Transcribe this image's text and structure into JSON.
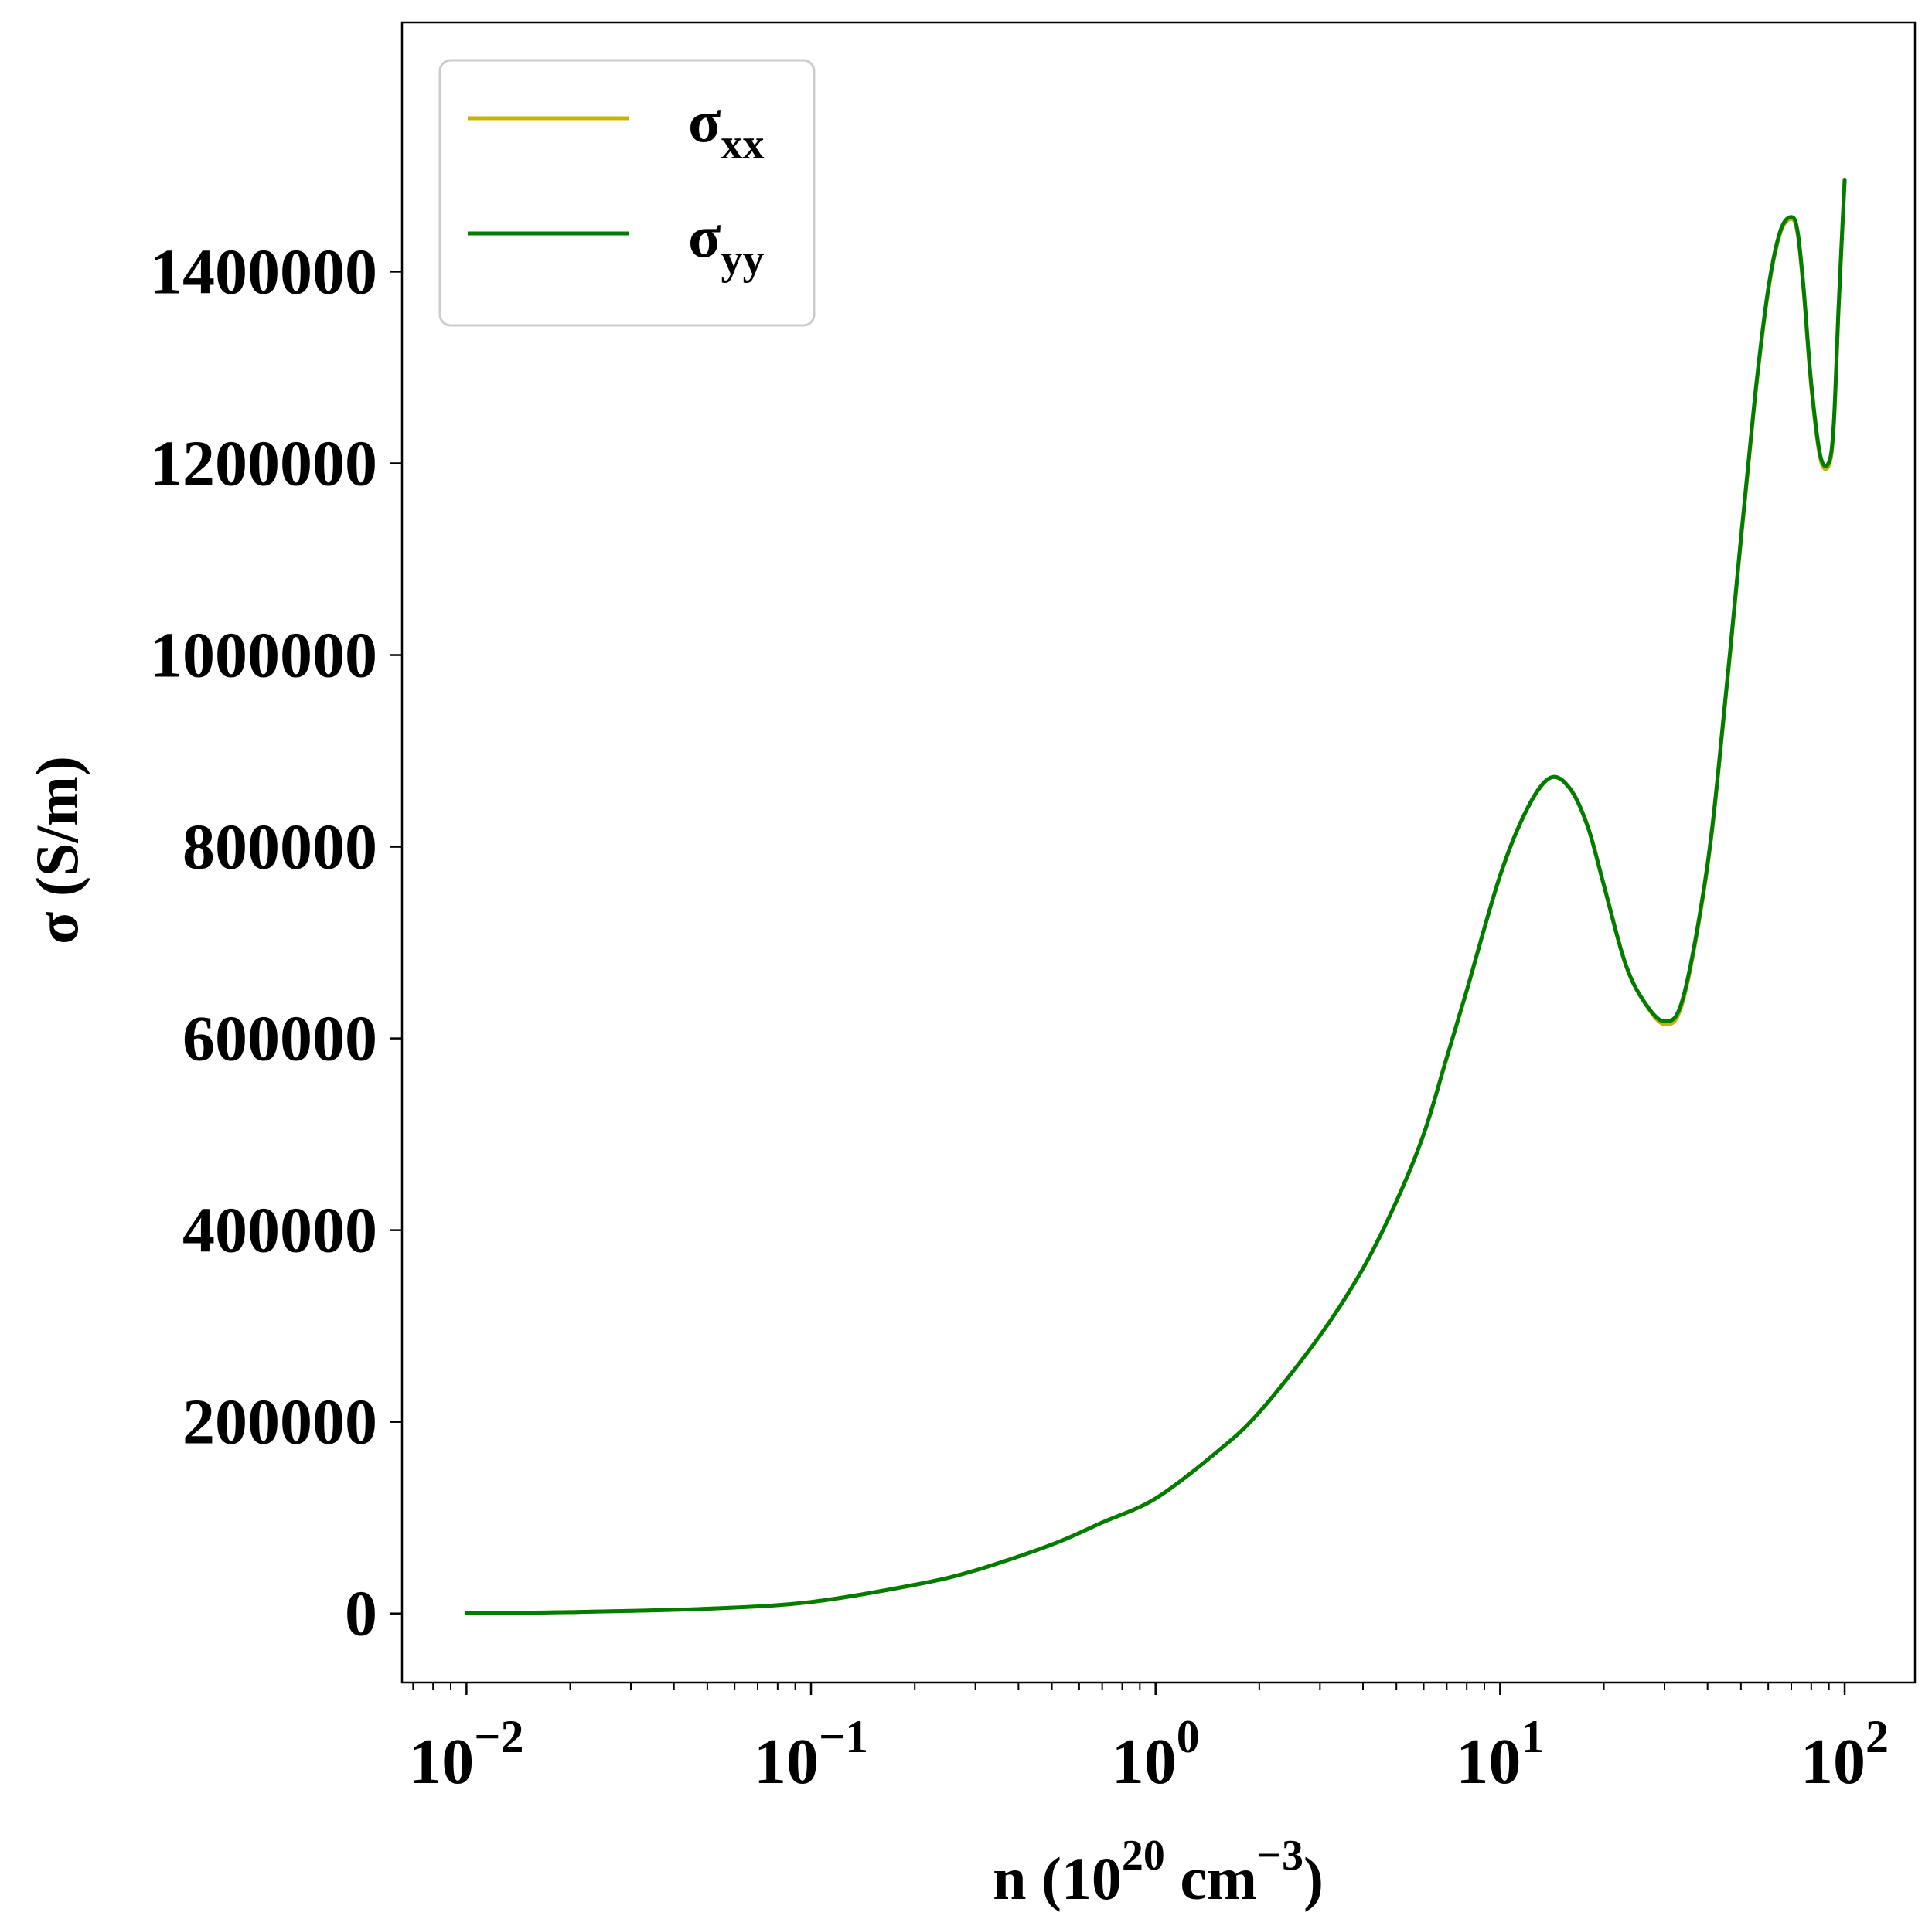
{
  "chart_data": {
    "type": "line",
    "xlabel": {
      "base": "n (10",
      "sup1": "20",
      "mid": " cm",
      "sup2": "−3",
      "end": ")"
    },
    "ylabel": "σ (S/m)",
    "x_scale": "log",
    "xlim": [
      0.0065,
      160
    ],
    "ylim": [
      -72000,
      1660000
    ],
    "x_ticks": [
      {
        "value": 0.01,
        "base": "10",
        "exp": "−2"
      },
      {
        "value": 0.1,
        "base": "10",
        "exp": "−1"
      },
      {
        "value": 1,
        "base": "10",
        "exp": "0"
      },
      {
        "value": 10,
        "base": "10",
        "exp": "1"
      },
      {
        "value": 100,
        "base": "10",
        "exp": "2"
      }
    ],
    "y_ticks": [
      0,
      200000,
      400000,
      600000,
      800000,
      1000000,
      1200000,
      1400000
    ],
    "y_tick_labels": [
      "0",
      "200000",
      "400000",
      "600000",
      "800000",
      "1000000",
      "1200000",
      "1400000"
    ],
    "grid": false,
    "legend_position": "top-left",
    "series": [
      {
        "name": {
          "base": "σ",
          "sub": "xx"
        },
        "color": "#c8b400",
        "x": [
          0.01,
          0.02,
          0.05,
          0.1,
          0.2,
          0.3,
          0.5,
          0.7,
          1.0,
          1.5,
          2.0,
          3.0,
          4.0,
          5.0,
          6.0,
          7.0,
          8.0,
          10.0,
          12.0,
          14.0,
          16.0,
          18.0,
          20.0,
          23.0,
          26.0,
          30.0,
          34.0,
          40.0,
          45.0,
          50.0,
          55.0,
          60.0,
          65.0,
          70.0,
          73.0,
          76.0,
          80.0,
          85.0,
          90.0,
          93.0,
          96.0,
          100.0
        ],
        "y": [
          500,
          1500,
          5000,
          12000,
          30000,
          45000,
          72000,
          95000,
          120000,
          168000,
          210000,
          290000,
          360000,
          430000,
          500000,
          580000,
          650000,
          770000,
          840000,
          872000,
          860000,
          820000,
          760000,
          680000,
          640000,
          615000,
          640000,
          780000,
          950000,
          1120000,
          1270000,
          1380000,
          1440000,
          1455000,
          1440000,
          1380000,
          1280000,
          1205000,
          1198000,
          1240000,
          1360000,
          1495000
        ]
      },
      {
        "name": {
          "base": "σ",
          "sub": "yy"
        },
        "color": "#007d00",
        "x": [
          0.01,
          0.02,
          0.05,
          0.1,
          0.2,
          0.3,
          0.5,
          0.7,
          1.0,
          1.5,
          2.0,
          3.0,
          4.0,
          5.0,
          6.0,
          7.0,
          8.0,
          10.0,
          12.0,
          14.0,
          16.0,
          18.0,
          20.0,
          23.0,
          26.0,
          30.0,
          34.0,
          40.0,
          45.0,
          50.0,
          55.0,
          60.0,
          65.0,
          70.0,
          73.0,
          76.0,
          80.0,
          85.0,
          90.0,
          93.0,
          96.0,
          100.0
        ],
        "y": [
          500,
          1500,
          5000,
          12000,
          30000,
          45000,
          72000,
          95000,
          120000,
          168000,
          210000,
          290000,
          360000,
          430000,
          500000,
          580000,
          650000,
          770000,
          840000,
          872000,
          860000,
          820000,
          760000,
          680000,
          640000,
          618000,
          643000,
          782000,
          952000,
          1122000,
          1272000,
          1382000,
          1442000,
          1457000,
          1442000,
          1383000,
          1283000,
          1208000,
          1201000,
          1242000,
          1362000,
          1496000
        ]
      }
    ]
  }
}
